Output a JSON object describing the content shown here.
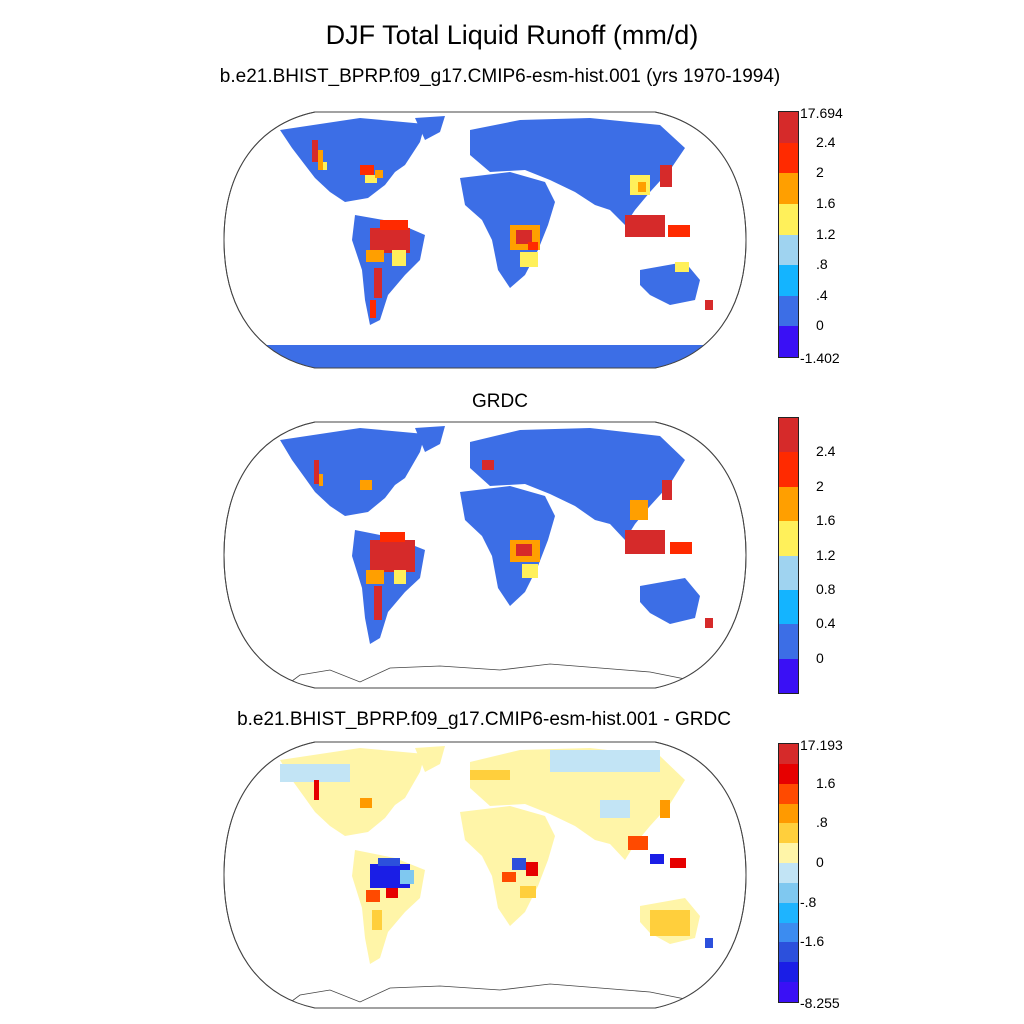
{
  "figure": {
    "title": "DJF Total Liquid Runoff (mm/d)"
  },
  "panels": [
    {
      "title": "b.e21.BHIST_BPRP.f09_g17.CMIP6-esm-hist.001 (yrs 1970-1994)",
      "colorbar": {
        "colors": [
          "#d62a2a",
          "#ff2a00",
          "#ff9f00",
          "#fff05a",
          "#9fd3f0",
          "#14b4ff",
          "#3c6ee6",
          "#3a10f5"
        ],
        "labels": [
          "17.694",
          "2.4",
          "2",
          "1.6",
          "1.2",
          ".8",
          ".4",
          "0",
          "-1.402"
        ]
      }
    },
    {
      "title": "GRDC",
      "colorbar": {
        "colors": [
          "#d62a2a",
          "#ff2a00",
          "#ff9f00",
          "#fff05a",
          "#9fd3f0",
          "#14b4ff",
          "#3c6ee6",
          "#3a10f5"
        ],
        "labels": [
          "",
          "2.4",
          "2",
          "1.6",
          "1.2",
          "0.8",
          "0.4",
          "0",
          ""
        ]
      }
    },
    {
      "title": "b.e21.BHIST_BPRP.f09_g17.CMIP6-esm-hist.001 - GRDC",
      "colorbar": {
        "colors": [
          "#d62a2a",
          "#e60000",
          "#ff4a00",
          "#ff9a00",
          "#ffcf3c",
          "#fff5a8",
          "#c2e4f5",
          "#7fc8f0",
          "#1eb4ff",
          "#3c8cf0",
          "#2c50dc",
          "#1a1ee6",
          "#3a10f5"
        ],
        "labels": [
          "17.193",
          "",
          "1.6",
          "",
          ".8",
          "",
          "0",
          "",
          "-.8",
          "",
          "-1.6",
          "",
          "",
          "-8.255"
        ]
      }
    }
  ]
}
